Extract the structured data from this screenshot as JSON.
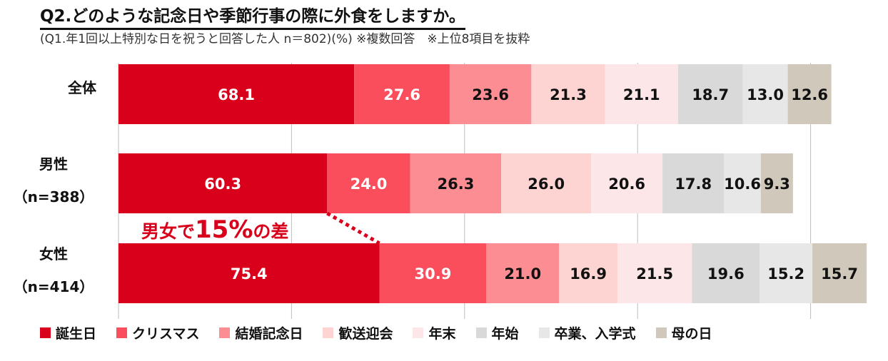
{
  "title": "Q2.どのような記念日や季節行事の際に外食をしますか。",
  "subtitle": "(Q1.年1回以上特別な日を祝うと回答した人 n＝802)(%) ※複数回答　※上位8項目を抜粋",
  "annotation": {
    "prefix": "男女で",
    "highlight": "15%",
    "suffix": "の差"
  },
  "chart_data": {
    "type": "bar",
    "stacked": true,
    "orientation": "horizontal",
    "title": "Q2.どのような記念日や季節行事の際に外食をしますか。",
    "unit": "%",
    "categories": [
      "全体",
      "男性 (n=388)",
      "女性 (n=414)"
    ],
    "category_lines": [
      [
        "全体"
      ],
      [
        "男性",
        "（n=388）"
      ],
      [
        "女性",
        "（n=414）"
      ]
    ],
    "series": [
      {
        "name": "誕生日",
        "color": "#d9001b",
        "text_color": "#ffffff",
        "values": [
          68.1,
          60.3,
          75.4
        ]
      },
      {
        "name": "クリスマス",
        "color": "#fb4e5c",
        "text_color": "#ffffff",
        "values": [
          27.6,
          24.0,
          30.9
        ]
      },
      {
        "name": "結婚記念日",
        "color": "#fc8d92",
        "text_color": "#111111",
        "values": [
          23.6,
          26.3,
          21.0
        ]
      },
      {
        "name": "歓送迎会",
        "color": "#fdd4d1",
        "text_color": "#111111",
        "values": [
          21.3,
          26.0,
          16.9
        ]
      },
      {
        "name": "年末",
        "color": "#fde6e7",
        "text_color": "#111111",
        "values": [
          21.1,
          20.6,
          21.5
        ]
      },
      {
        "name": "年始",
        "color": "#d9d9d9",
        "text_color": "#111111",
        "values": [
          18.7,
          17.8,
          19.6
        ]
      },
      {
        "name": "卒業、入学式",
        "color": "#e7e7e7",
        "text_color": "#111111",
        "values": [
          13.0,
          10.6,
          15.2
        ]
      },
      {
        "name": "母の日",
        "color": "#d0c9bb",
        "text_color": "#111111",
        "values": [
          12.6,
          9.3,
          15.7
        ]
      }
    ],
    "x_range": [
      0,
      217
    ],
    "gridline_values": [
      0,
      50,
      100,
      150,
      200
    ],
    "legend_position": "bottom"
  }
}
